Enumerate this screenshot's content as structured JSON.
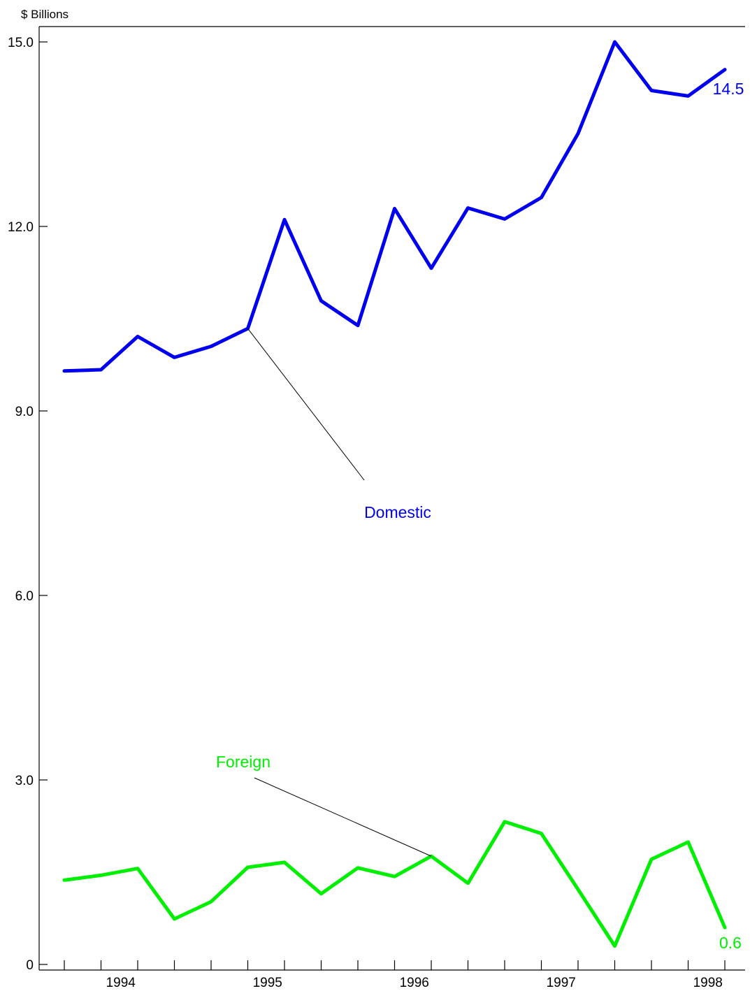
{
  "chart_data": {
    "type": "line",
    "ylabel": "$ Billions",
    "ylim": [
      0,
      15
    ],
    "yticks": [
      0,
      3,
      6,
      9,
      12,
      15
    ],
    "ytick_labels": [
      "0",
      "3.0",
      "6.0",
      "9.0",
      "12.0",
      "15.0"
    ],
    "x": [
      "1993 Q4",
      "1994 Q1",
      "1994 Q2",
      "1994 Q3",
      "1994 Q4",
      "1995 Q1",
      "1995 Q2",
      "1995 Q3",
      "1995 Q4",
      "1996 Q1",
      "1996 Q2",
      "1996 Q3",
      "1996 Q4",
      "1997 Q1",
      "1997 Q2",
      "1997 Q3",
      "1997 Q4",
      "1998 Q1",
      "1998 Q2"
    ],
    "year_labels": [
      "1994",
      "1995",
      "1996",
      "1997",
      "1998"
    ],
    "grid": false,
    "series": [
      {
        "name": "Domestic",
        "color": "#0000ee",
        "values": [
          9.65,
          9.67,
          10.21,
          9.87,
          10.05,
          10.34,
          12.11,
          10.79,
          10.39,
          12.29,
          11.32,
          12.3,
          12.12,
          12.47,
          13.51,
          15.0,
          14.21,
          14.12,
          14.55
        ],
        "end_label": "14.5"
      },
      {
        "name": "Foreign",
        "color": "#00ee00",
        "values": [
          1.37,
          1.45,
          1.56,
          0.74,
          1.02,
          1.58,
          1.66,
          1.15,
          1.57,
          1.43,
          1.76,
          1.32,
          2.32,
          2.13,
          1.22,
          0.3,
          1.71,
          1.99,
          0.6
        ],
        "end_label": "0.6"
      }
    ]
  }
}
